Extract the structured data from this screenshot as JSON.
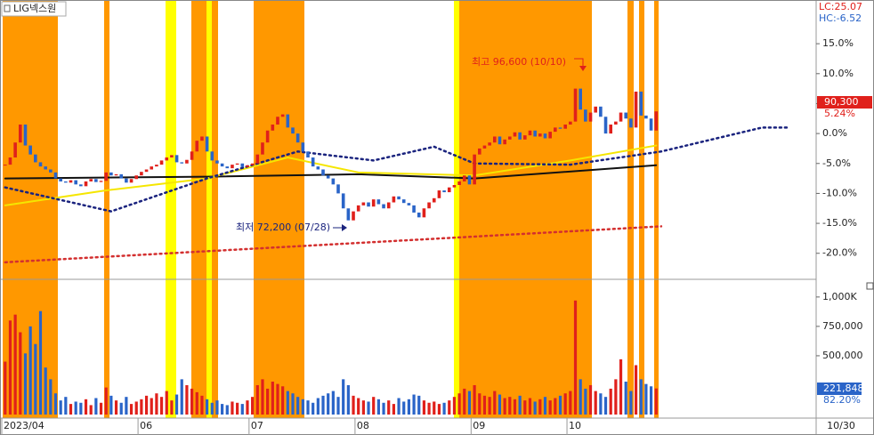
{
  "title": "LIG넥스원",
  "lc_label": "LC:25.07",
  "hc_label": "HC:-6.52",
  "current_date": "10/30",
  "chart_data": [
    {
      "type": "candlestick",
      "up_color": "#e0201b",
      "down_color": "#2a64c8",
      "values": [
        -5.2,
        -4.0,
        -1.5,
        1.5,
        -2.0,
        -3.5,
        -4.8,
        -5.5,
        -6.0,
        -6.5,
        -7.5,
        -8.0,
        -8.2,
        -7.8,
        -8.5,
        -8.8,
        -8.0,
        -7.6,
        -8.1,
        -7.9,
        -6.5,
        -7.0,
        -6.8,
        -7.5,
        -8.2,
        -7.6,
        -7.0,
        -6.4,
        -6.0,
        -5.5,
        -5.2,
        -4.5,
        -4.0,
        -3.6,
        -4.8,
        -5.0,
        -4.4,
        -3.0,
        -1.2,
        -0.5,
        -3.0,
        -4.5,
        -5.0,
        -5.5,
        -5.8,
        -5.2,
        -5.0,
        -5.6,
        -5.3,
        -5.0,
        -3.5,
        -1.5,
        0.5,
        1.5,
        2.8,
        3.2,
        1.0,
        0.0,
        -1.5,
        -3.0,
        -4.0,
        -5.5,
        -6.0,
        -7.0,
        -7.5,
        -8.5,
        -10.0,
        -12.5,
        -14.5,
        -13.0,
        -12.0,
        -11.5,
        -12.2,
        -11.0,
        -11.8,
        -12.5,
        -11.5,
        -10.5,
        -11.0,
        -11.6,
        -12.0,
        -13.2,
        -14.0,
        -12.5,
        -11.5,
        -10.8,
        -9.5,
        -9.8,
        -9.0,
        -8.6,
        -8.0,
        -7.0,
        -8.5,
        -3.5,
        -2.5,
        -2.0,
        -1.5,
        -0.5,
        -1.8,
        -1.0,
        -0.5,
        0.2,
        -1.0,
        -0.3,
        0.5,
        -0.5,
        0.0,
        -0.8,
        0.3,
        1.0,
        0.8,
        1.5,
        2.0,
        7.5,
        4.0,
        2.0,
        3.5,
        4.5,
        2.8,
        0.0,
        1.5,
        2.0,
        3.5,
        2.5,
        1.0,
        7.0,
        3.0,
        2.5,
        0.5,
        3.7
      ],
      "ylim": [
        -24.2,
        22.3
      ],
      "yticks": [
        {
          "value": 15,
          "label": "15.0%"
        },
        {
          "value": 10,
          "label": "10.0%"
        },
        {
          "value": 5,
          "label": "5.0%"
        },
        {
          "value": 0,
          "label": "0.0%"
        },
        {
          "value": -5,
          "label": "-5.0%"
        },
        {
          "value": -10,
          "label": "-10.0%"
        },
        {
          "value": -15,
          "label": "-15.0%"
        },
        {
          "value": -20,
          "label": "-20.0%"
        }
      ],
      "overlays": [
        {
          "color": "#111111",
          "style": "solid",
          "x": [
            0,
            40,
            70,
            93,
            129
          ],
          "values": [
            -7.5,
            -7.2,
            -6.8,
            -7.5,
            -5.3
          ]
        },
        {
          "color": "#f5e600",
          "style": "solid",
          "x": [
            0,
            20,
            40,
            56,
            70,
            93,
            112,
            129
          ],
          "values": [
            -12,
            -9.5,
            -7.5,
            -4,
            -6.5,
            -7,
            -4.5,
            -2
          ]
        },
        {
          "color": "#1a237e",
          "style": "dotted",
          "x": [
            0,
            21,
            40,
            58,
            73,
            85,
            93,
            112,
            130,
            150,
            155
          ],
          "values": [
            -9,
            -13,
            -7.5,
            -3,
            -4.5,
            -2.2,
            -5,
            -5.2,
            -3,
            1,
            1
          ]
        },
        {
          "color": "#d32f2f",
          "style": "dotted",
          "x": [
            0,
            130
          ],
          "values": [
            -21.5,
            -15.5
          ]
        }
      ],
      "annotations": [
        "최고 96,600 (10/10)",
        "최저 72,200 (07/28)"
      ],
      "last_price_label": "90,300",
      "last_change_label": "5.24%"
    },
    {
      "type": "bar",
      "categories": [
        "2023/04",
        null,
        null,
        null,
        null,
        null,
        null,
        null,
        null,
        null,
        null,
        null,
        null,
        null,
        null,
        null,
        null,
        null,
        null,
        null,
        null,
        null,
        null,
        null,
        null,
        null,
        null,
        "06",
        null,
        null,
        null,
        null,
        null,
        null,
        null,
        null,
        null,
        null,
        null,
        null,
        null,
        null,
        null,
        null,
        null,
        null,
        null,
        null,
        null,
        "07",
        null,
        null,
        null,
        null,
        null,
        null,
        null,
        null,
        null,
        null,
        null,
        null,
        null,
        null,
        null,
        null,
        null,
        null,
        null,
        null,
        "08",
        null,
        null,
        null,
        null,
        null,
        null,
        null,
        null,
        null,
        null,
        null,
        null,
        null,
        null,
        null,
        null,
        null,
        null,
        null,
        null,
        null,
        null,
        "09",
        null,
        null,
        null,
        null,
        null,
        null,
        null,
        null,
        null,
        null,
        null,
        null,
        null,
        null,
        null,
        null,
        null,
        null,
        "10",
        null,
        null,
        null,
        null,
        null,
        null,
        null,
        null,
        null,
        null,
        null,
        null,
        null,
        null,
        null,
        null,
        null
      ],
      "values": [
        450000,
        800000,
        850000,
        700000,
        520000,
        750000,
        600000,
        880000,
        400000,
        300000,
        180000,
        120000,
        150000,
        90000,
        110000,
        100000,
        130000,
        80000,
        140000,
        100000,
        230000,
        160000,
        120000,
        100000,
        150000,
        90000,
        110000,
        130000,
        160000,
        140000,
        180000,
        150000,
        200000,
        120000,
        170000,
        300000,
        250000,
        220000,
        190000,
        160000,
        130000,
        100000,
        120000,
        90000,
        80000,
        110000,
        100000,
        90000,
        120000,
        150000,
        250000,
        300000,
        220000,
        280000,
        260000,
        240000,
        200000,
        180000,
        150000,
        130000,
        120000,
        100000,
        140000,
        160000,
        180000,
        200000,
        150000,
        300000,
        250000,
        160000,
        140000,
        120000,
        110000,
        150000,
        130000,
        100000,
        120000,
        90000,
        140000,
        110000,
        130000,
        170000,
        160000,
        120000,
        100000,
        110000,
        90000,
        100000,
        120000,
        150000,
        180000,
        220000,
        200000,
        250000,
        180000,
        160000,
        150000,
        200000,
        170000,
        140000,
        150000,
        130000,
        160000,
        120000,
        140000,
        110000,
        130000,
        150000,
        120000,
        140000,
        160000,
        180000,
        200000,
        970000,
        300000,
        220000,
        250000,
        200000,
        180000,
        150000,
        220000,
        300000,
        470000,
        280000,
        200000,
        420000,
        300000,
        260000,
        240000,
        221848
      ],
      "ylim": [
        0,
        1120000
      ],
      "yticks": [
        {
          "value": 1000000,
          "label": "1,000K"
        },
        {
          "value": 750000,
          "label": "750,000"
        },
        {
          "value": 500000,
          "label": "500,000"
        }
      ],
      "last_volume_label": "221,848",
      "volume_ratio_label": "82.20%"
    }
  ]
}
